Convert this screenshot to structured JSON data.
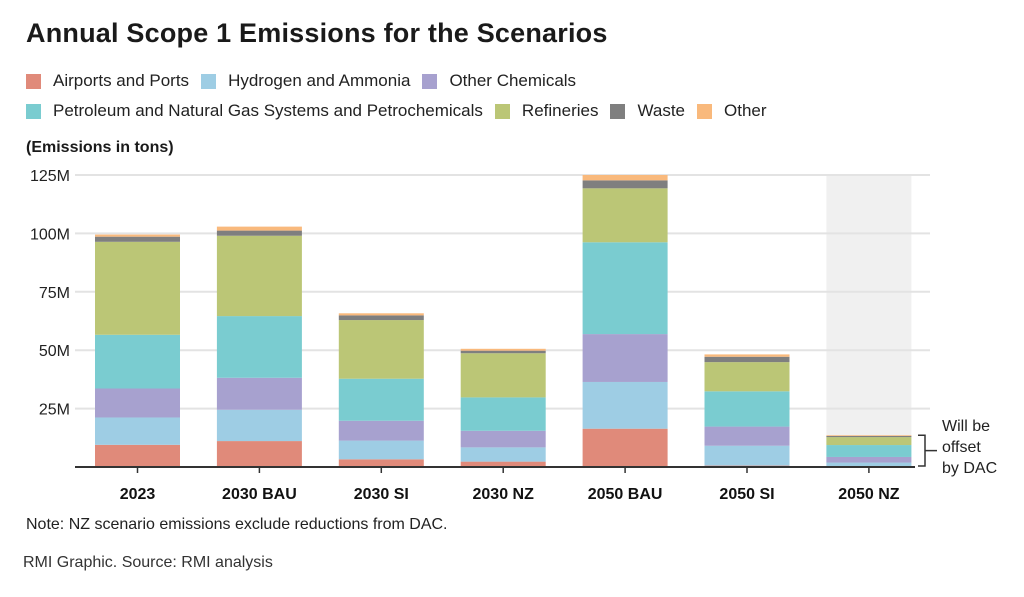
{
  "title": "Annual Scope 1 Emissions for the Scenarios",
  "unit_label": "(Emissions in tons)",
  "note": "Note: NZ scenario emissions exclude reductions from DAC.",
  "source": "RMI Graphic. Source: RMI analysis",
  "annotation": {
    "lines": [
      "Will be",
      "offset",
      "by DAC"
    ],
    "target_category": "2050 NZ"
  },
  "legend": {
    "rows": [
      [
        {
          "label": "Airports and Ports",
          "color": "#E08A7A"
        },
        {
          "label": "Hydrogen and Ammonia",
          "color": "#9ECDE4"
        },
        {
          "label": "Other Chemicals",
          "color": "#A7A1CF"
        }
      ],
      [
        {
          "label": "Petroleum and Natural Gas Systems and Petrochemicals",
          "color": "#7ACCD0"
        },
        {
          "label": "Refineries",
          "color": "#BBC676"
        },
        {
          "label": "Waste",
          "color": "#7F7F7F"
        },
        {
          "label": "Other",
          "color": "#F9B97C"
        }
      ]
    ]
  },
  "chart_data": {
    "type": "bar",
    "stacked": true,
    "title": "Annual Scope 1 Emissions for the Scenarios",
    "xlabel": "",
    "ylabel": "(Emissions in tons)",
    "ylim": [
      0,
      125000000
    ],
    "yticks": [
      25000000,
      50000000,
      75000000,
      100000000,
      125000000
    ],
    "ytick_labels": [
      "25M",
      "50M",
      "75M",
      "100M",
      "125M"
    ],
    "grid": true,
    "legend_position": "top",
    "highlighted_category": "2050 NZ",
    "highlight_color": "#F0F0F0",
    "categories": [
      "2023",
      "2030 BAU",
      "2030 SI",
      "2030 NZ",
      "2050 BAU",
      "2050 SI",
      "2050 NZ"
    ],
    "series": [
      {
        "name": "Airports and Ports",
        "color": "#E08A7A",
        "values": [
          9500000,
          11100000,
          3300000,
          2300000,
          16400000,
          600000,
          300000
        ]
      },
      {
        "name": "Hydrogen and Ammonia",
        "color": "#9ECDE4",
        "values": [
          11700000,
          13400000,
          8000000,
          6100000,
          20000000,
          8500000,
          1600000
        ]
      },
      {
        "name": "Other Chemicals",
        "color": "#A7A1CF",
        "values": [
          12400000,
          13700000,
          8500000,
          7100000,
          20500000,
          8200000,
          2400000
        ]
      },
      {
        "name": "Petroleum and Natural Gas Systems and Petrochemicals",
        "color": "#7ACCD0",
        "values": [
          23000000,
          26400000,
          18000000,
          14300000,
          39300000,
          15100000,
          5100000
        ]
      },
      {
        "name": "Refineries",
        "color": "#BBC676",
        "values": [
          39800000,
          34400000,
          25100000,
          18900000,
          23100000,
          12500000,
          3400000
        ]
      },
      {
        "name": "Waste",
        "color": "#7F7F7F",
        "values": [
          2200000,
          2200000,
          2000000,
          1100000,
          3400000,
          2300000,
          500000
        ]
      },
      {
        "name": "Other",
        "color": "#F9B97C",
        "values": [
          900000,
          1700000,
          900000,
          800000,
          2300000,
          1000000,
          300000
        ]
      }
    ]
  }
}
